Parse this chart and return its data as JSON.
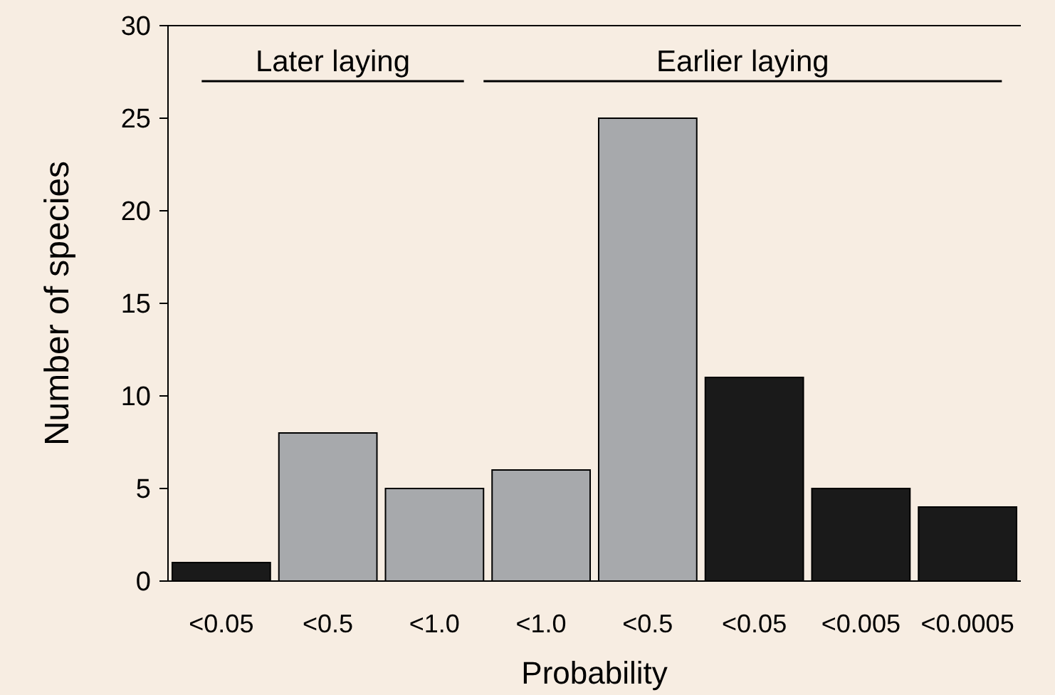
{
  "chart_data": {
    "type": "bar",
    "xlabel": "Probability",
    "ylabel": "Number of species",
    "categories": [
      "<0.05",
      "<0.5",
      "<1.0",
      "<1.0",
      "<0.5",
      "<0.05",
      "<0.005",
      "<0.0005"
    ],
    "values": [
      1,
      8,
      5,
      6,
      25,
      11,
      5,
      4
    ],
    "colors": [
      "#1a1a1a",
      "#a7a9ac",
      "#a7a9ac",
      "#a7a9ac",
      "#a7a9ac",
      "#1a1a1a",
      "#1a1a1a",
      "#1a1a1a"
    ],
    "ylim": [
      0,
      30
    ],
    "yticks": [
      0,
      5,
      10,
      15,
      20,
      25,
      30
    ],
    "grid": false,
    "annotations": [
      "Later laying",
      "Earlier laying"
    ]
  }
}
